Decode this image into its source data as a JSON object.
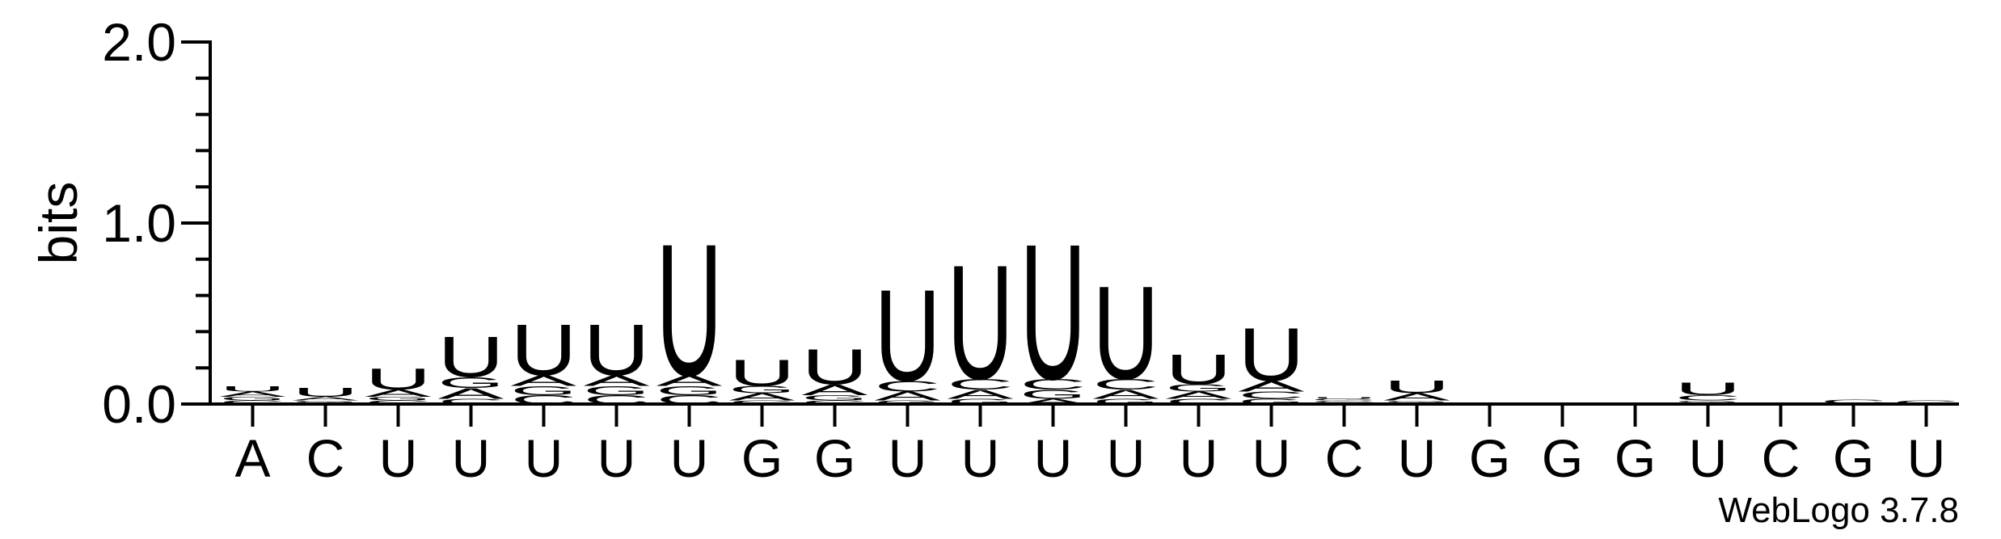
{
  "chart_data": {
    "type": "logo",
    "ylabel": "bits",
    "footer": "WebLogo 3.7.8",
    "categories": [
      "A",
      "C",
      "U",
      "U",
      "U",
      "U",
      "U",
      "G",
      "G",
      "U",
      "U",
      "U",
      "U",
      "U",
      "U",
      "C",
      "U",
      "G",
      "G",
      "G",
      "U",
      "C",
      "G",
      "U"
    ],
    "ylim": [
      0,
      2
    ],
    "yticks": [
      {
        "value": 0,
        "label": "0.0"
      },
      {
        "value": 1,
        "label": "1.0"
      },
      {
        "value": 2,
        "label": "2.0"
      }
    ],
    "minor_yticks": [
      0.2,
      0.4,
      0.6,
      0.8,
      1.2,
      1.4,
      1.6,
      1.8
    ],
    "series": [
      {
        "name": "A",
        "color": "#ff8c00",
        "values": [
          0.03,
          0.02,
          0.04,
          0.06,
          0.06,
          0.06,
          0.06,
          0.04,
          0.06,
          0.05,
          0.05,
          0.03,
          0.05,
          0.04,
          0.06,
          0.01,
          0.04,
          0,
          0,
          0,
          0.01,
          0,
          0.005,
          0
        ]
      },
      {
        "name": "C",
        "color": "#0000ff",
        "values": [
          0.02,
          0.01,
          0.02,
          0.03,
          0.05,
          0.05,
          0.05,
          0.02,
          0.02,
          0.06,
          0.06,
          0.06,
          0.06,
          0.03,
          0.04,
          0.01,
          0.01,
          0,
          0,
          0,
          0.03,
          0,
          0.02,
          0.02
        ]
      },
      {
        "name": "G",
        "color": "#0000ff",
        "values": [
          0.02,
          0.01,
          0.02,
          0.06,
          0.05,
          0.05,
          0.05,
          0.04,
          0.03,
          0.02,
          0.03,
          0.05,
          0.03,
          0.04,
          0.03,
          0.01,
          0.01,
          0,
          0,
          0,
          0.01,
          0,
          0,
          0
        ]
      },
      {
        "name": "U",
        "color": "#ff8c00",
        "values": [
          0.03,
          0.05,
          0.12,
          0.23,
          0.29,
          0.29,
          0.75,
          0.15,
          0.2,
          0.52,
          0.65,
          0.77,
          0.53,
          0.17,
          0.3,
          0.01,
          0.07,
          0,
          0,
          0,
          0.07,
          0,
          0,
          0
        ]
      }
    ]
  }
}
